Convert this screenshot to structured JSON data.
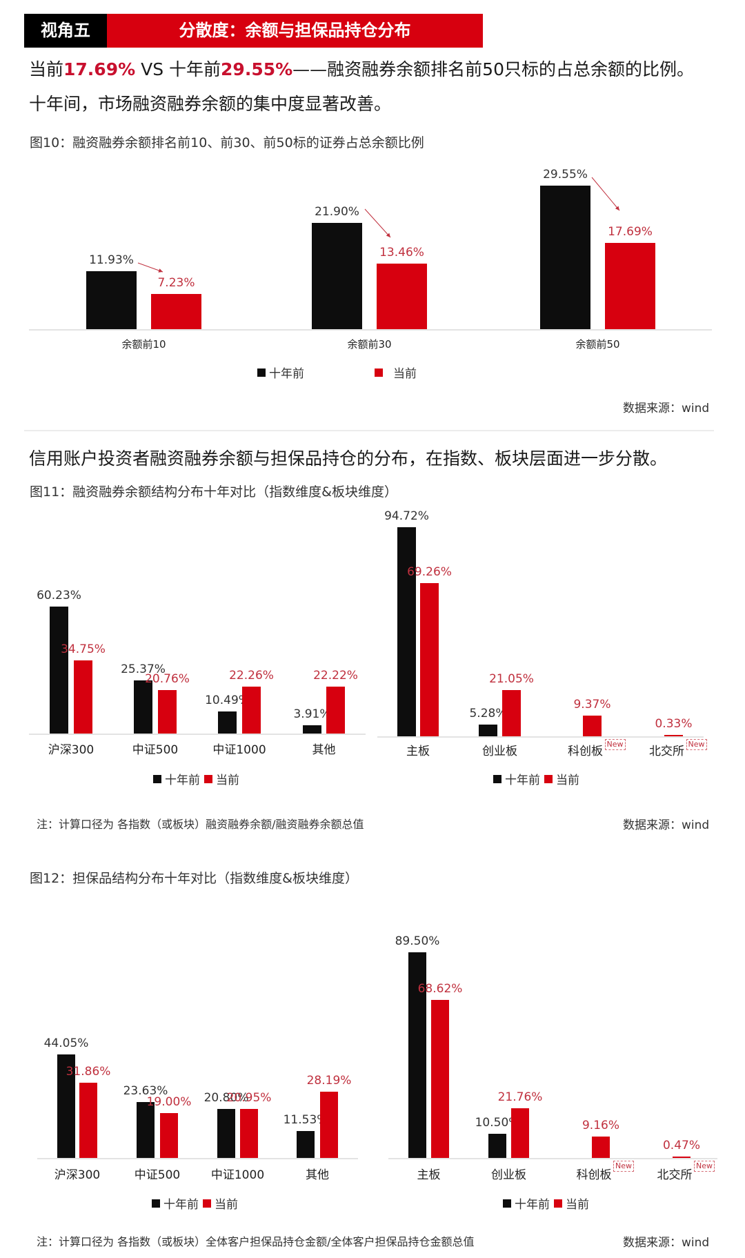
{
  "header": {
    "section_tag": "视角五",
    "section_title": "分散度：余额与担保品持仓分布"
  },
  "intro": {
    "line1_prefix": "当前",
    "line1_now": "17.69%",
    "line1_mid": " VS 十年前",
    "line1_old": "29.55%",
    "line1_suffix": "——融资融券余额排名前50只标的占总余额的比例。",
    "line2": "十年间，市场融资融券余额的集中度显著改善。"
  },
  "section2_lead": "信用账户投资者融资融券余额与担保品持仓的分布，在指数、板块层面进一步分散。",
  "legend": {
    "old": "十年前",
    "now": "当前"
  },
  "colors": {
    "old": "#0d0d0d",
    "now": "#d7000f",
    "accent_text": "#c8102e"
  },
  "source_label": "数据来源：wind",
  "new_tag": "New",
  "fig10": {
    "title": "图10：融资融券余额排名前10、前30、前50标的证券占总余额比例"
  },
  "fig11": {
    "title": "图11：融资融券余额结构分布十年对比（指数维度&板块维度）",
    "note": "注：计算口径为 各指数（或板块）融资融券余额/融资融券余额总值"
  },
  "fig12": {
    "title": "图12：担保品结构分布十年对比（指数维度&板块维度）",
    "note": "注：计算口径为 各指数（或板块）全体客户担保品持仓金额/全体客户担保品持仓金额总值"
  },
  "chart_data": [
    {
      "id": "fig10",
      "type": "bar",
      "title": "图10：融资融券余额排名前10、前30、前50标的证券占总余额比例",
      "categories": [
        "余额前10",
        "余额前30",
        "余额前50"
      ],
      "series": [
        {
          "name": "十年前",
          "values": [
            11.93,
            21.9,
            29.55
          ],
          "labels": [
            "11.93%",
            "21.90%",
            "29.55%"
          ]
        },
        {
          "name": "当前",
          "values": [
            7.23,
            13.46,
            17.69
          ],
          "labels": [
            "7.23%",
            "13.46%",
            "17.69%"
          ]
        }
      ],
      "xlabel": "",
      "ylabel": "",
      "unit": "%",
      "annotations": [
        "arrows from 十年前 label to 当前 label in each group"
      ],
      "legend_position": "bottom",
      "grid": false,
      "source": "数据来源：wind"
    },
    {
      "id": "fig11_index",
      "type": "bar",
      "title": "图11：融资融券余额结构分布十年对比（指数维度）",
      "categories": [
        "沪深300",
        "中证500",
        "中证1000",
        "其他"
      ],
      "series": [
        {
          "name": "十年前",
          "values": [
            60.23,
            25.37,
            10.49,
            3.91
          ],
          "labels": [
            "60.23%",
            "25.37%",
            "10.49%",
            "3.91%"
          ]
        },
        {
          "name": "当前",
          "values": [
            34.75,
            20.76,
            22.26,
            22.22
          ],
          "labels": [
            "34.75%",
            "20.76%",
            "22.26%",
            "22.22%"
          ]
        }
      ],
      "unit": "%",
      "legend_position": "bottom",
      "grid": false
    },
    {
      "id": "fig11_board",
      "type": "bar",
      "title": "图11：融资融券余额结构分布十年对比（板块维度）",
      "categories": [
        "主板",
        "创业板",
        "科创板",
        "北交所"
      ],
      "series": [
        {
          "name": "十年前",
          "values": [
            94.72,
            5.28,
            null,
            null
          ],
          "labels": [
            "94.72%",
            "5.28%",
            "",
            ""
          ]
        },
        {
          "name": "当前",
          "values": [
            69.26,
            21.05,
            9.37,
            0.33
          ],
          "labels": [
            "69.26%",
            "21.05%",
            "9.37%",
            "0.33%"
          ]
        }
      ],
      "annotations": [
        "科创板: New",
        "北交所: New"
      ],
      "unit": "%",
      "legend_position": "bottom",
      "grid": false,
      "note": "注：计算口径为 各指数（或板块）融资融券余额/融资融券余额总值",
      "source": "数据来源：wind"
    },
    {
      "id": "fig12_index",
      "type": "bar",
      "title": "图12：担保品结构分布十年对比（指数维度）",
      "categories": [
        "沪深300",
        "中证500",
        "中证1000",
        "其他"
      ],
      "series": [
        {
          "name": "十年前",
          "values": [
            44.05,
            23.63,
            20.8,
            11.53
          ],
          "labels": [
            "44.05%",
            "23.63%",
            "20.80%",
            "11.53%"
          ]
        },
        {
          "name": "当前",
          "values": [
            31.86,
            19.0,
            20.95,
            28.19
          ],
          "labels": [
            "31.86%",
            "19.00%",
            "20.95%",
            "28.19%"
          ]
        }
      ],
      "unit": "%",
      "legend_position": "bottom",
      "grid": false
    },
    {
      "id": "fig12_board",
      "type": "bar",
      "title": "图12：担保品结构分布十年对比（板块维度）",
      "categories": [
        "主板",
        "创业板",
        "科创板",
        "北交所"
      ],
      "series": [
        {
          "name": "十年前",
          "values": [
            89.5,
            10.5,
            null,
            null
          ],
          "labels": [
            "89.50%",
            "10.50%",
            "",
            ""
          ]
        },
        {
          "name": "当前",
          "values": [
            68.62,
            21.76,
            9.16,
            0.47
          ],
          "labels": [
            "68.62%",
            "21.76%",
            "9.16%",
            "0.47%"
          ]
        }
      ],
      "annotations": [
        "科创板: New",
        "北交所: New"
      ],
      "unit": "%",
      "legend_position": "bottom",
      "grid": false,
      "note": "注：计算口径为 各指数（或板块）全体客户担保品持仓金额/全体客户担保品持仓金额总值",
      "source": "数据来源：wind"
    }
  ]
}
